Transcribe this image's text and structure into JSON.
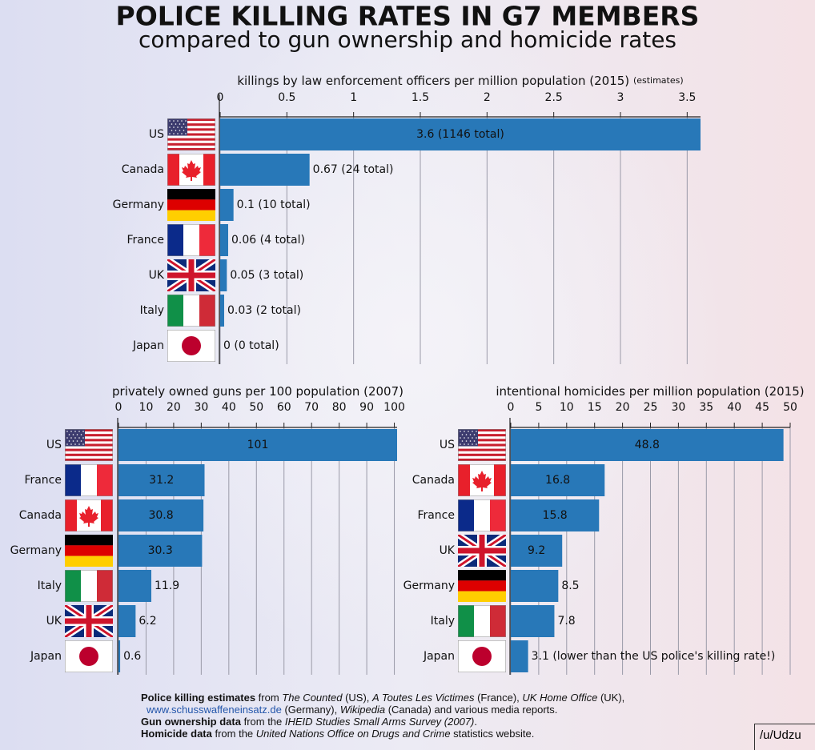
{
  "title": "POLICE KILLING RATES IN G7 MEMBERS",
  "subtitle": "compared to gun ownership and homicide rates",
  "chart_data": [
    {
      "type": "barh",
      "title": "killings by law enforcement officers per million population (2015)",
      "subtitle": "(estimates)",
      "categories": [
        "US",
        "Canada",
        "Germany",
        "France",
        "UK",
        "Italy",
        "Japan"
      ],
      "values": [
        3.6,
        0.67,
        0.1,
        0.06,
        0.05,
        0.03,
        0
      ],
      "value_labels": [
        "3.6 (1146 total)",
        "0.67 (24 total)",
        "0.1 (10 total)",
        "0.06 (4 total)",
        "0.05 (3 total)",
        "0.03 (2 total)",
        "0 (0 total)"
      ],
      "color": "#2878b8",
      "xlim": [
        0,
        3.6
      ],
      "xticks": [
        0,
        0.5,
        1,
        1.5,
        2,
        2.5,
        3,
        3.5
      ],
      "grid": true
    },
    {
      "type": "barh",
      "title": "privately owned guns per 100 population (2007)",
      "categories": [
        "US",
        "France",
        "Canada",
        "Germany",
        "Italy",
        "UK",
        "Japan"
      ],
      "values": [
        101,
        31.2,
        30.8,
        30.3,
        11.9,
        6.2,
        0.6
      ],
      "color": "#2878b8",
      "xlim": [
        0,
        101
      ],
      "xticks": [
        0,
        10,
        20,
        30,
        40,
        50,
        60,
        70,
        80,
        90,
        100
      ],
      "grid": true
    },
    {
      "type": "barh",
      "title": "intentional homicides per million population (2015)",
      "categories": [
        "US",
        "Canada",
        "France",
        "UK",
        "Germany",
        "Italy",
        "Japan"
      ],
      "values": [
        48.8,
        16.8,
        15.8,
        9.2,
        8.5,
        7.8,
        3.1
      ],
      "value_labels": [
        "48.8",
        "16.8",
        "15.8",
        "9.2",
        "8.5",
        "7.8",
        "3.1 (lower than the US police's killing rate!)"
      ],
      "color": "#2878b8",
      "xlim": [
        0,
        50
      ],
      "xticks": [
        0,
        5,
        10,
        15,
        20,
        25,
        30,
        35,
        40,
        45,
        50
      ],
      "grid": true
    }
  ],
  "footer": [
    [
      {
        "text": "Police killing estimates",
        "style": "bold"
      },
      {
        "text": " from ",
        "style": "normal"
      },
      {
        "text": "The Counted",
        "style": "italic"
      },
      {
        "text": " (US), ",
        "style": "normal"
      },
      {
        "text": "A Toutes Les Victimes",
        "style": "italic"
      },
      {
        "text": " (France), ",
        "style": "normal"
      },
      {
        "text": "UK Home Office",
        "style": "italic"
      },
      {
        "text": " (UK),",
        "style": "normal"
      }
    ],
    [
      {
        "text": "www.schusswaffeneinsatz.de",
        "style": "link"
      },
      {
        "text": " (Germany), ",
        "style": "normal"
      },
      {
        "text": "Wikipedia",
        "style": "italic"
      },
      {
        "text": " (Canada) and various media reports.",
        "style": "normal"
      }
    ],
    [
      {
        "text": "Gun ownership data",
        "style": "bold"
      },
      {
        "text": " from the ",
        "style": "normal"
      },
      {
        "text": "IHEID Studies Small Arms Survey (2007)",
        "style": "italic"
      },
      {
        "text": ".",
        "style": "normal"
      }
    ],
    [
      {
        "text": "Homicide data",
        "style": "bold"
      },
      {
        "text": " from the ",
        "style": "normal"
      },
      {
        "text": "United Nations Office on Drugs and Crime",
        "style": "italic"
      },
      {
        "text": " statistics website.",
        "style": "normal"
      }
    ]
  ],
  "credit": "/u/Udzu"
}
